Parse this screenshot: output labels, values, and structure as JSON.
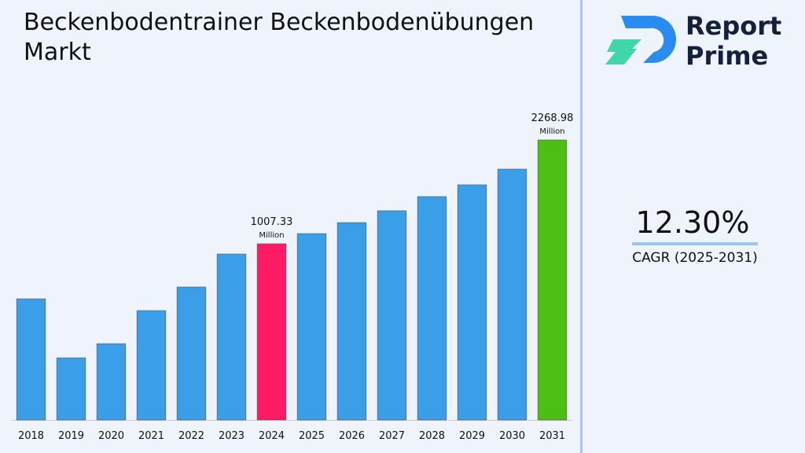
{
  "chart_data": {
    "type": "bar",
    "title": "Beckenbodentrainer Beckenbodenübungen Markt",
    "categories": [
      "2018",
      "2019",
      "2020",
      "2021",
      "2022",
      "2023",
      "2024",
      "2025",
      "2026",
      "2027",
      "2028",
      "2029",
      "2030",
      "2031"
    ],
    "values": [
      338,
      -379,
      -207,
      195,
      482,
      883,
      1007.33,
      1131,
      1265,
      1409,
      1581,
      1724,
      1915,
      2268.98
    ],
    "value_labels": [
      null,
      null,
      null,
      null,
      null,
      null,
      "1007.33",
      null,
      null,
      null,
      null,
      null,
      null,
      "2268.98"
    ],
    "value_unit": "Million",
    "colors": [
      "#3a9fe8",
      "#3a9fe8",
      "#3a9fe8",
      "#3a9fe8",
      "#3a9fe8",
      "#3a9fe8",
      "#ff1a66",
      "#3a9fe8",
      "#3a9fe8",
      "#3a9fe8",
      "#3a9fe8",
      "#3a9fe8",
      "#3a9fe8",
      "#4cbf12"
    ],
    "ylim": [
      -1134,
      2613
    ]
  },
  "sidebar": {
    "cagr_value": "12.30%",
    "cagr_label": "CAGR (2025-2031)"
  },
  "logo": {
    "line1": "Report",
    "line2": "Prime"
  }
}
